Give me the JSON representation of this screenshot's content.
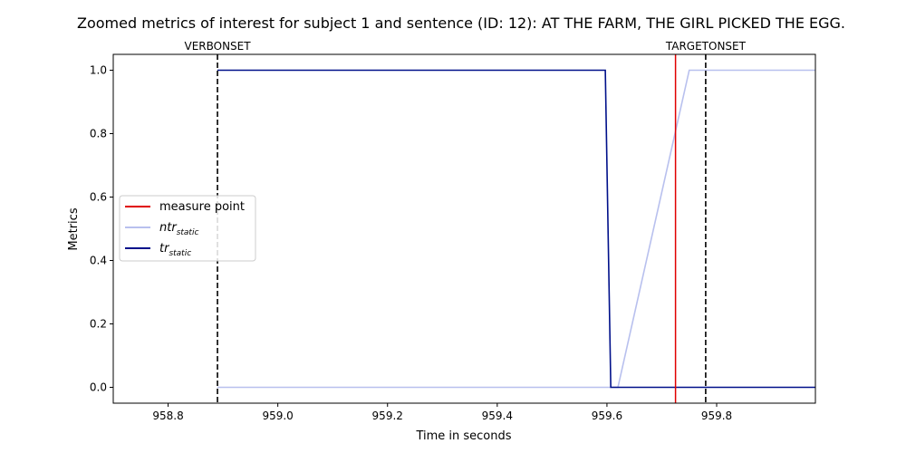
{
  "chart_data": {
    "type": "line",
    "title": "Zoomed metrics of interest for subject 1 and sentence (ID: 12): AT THE FARM, THE GIRL PICKED THE EGG.",
    "xlabel": "Time in seconds",
    "ylabel": "Metrics",
    "xlim": [
      958.7,
      959.98
    ],
    "ylim": [
      -0.05,
      1.05
    ],
    "x_ticks": [
      958.8,
      959.0,
      959.2,
      959.4,
      959.6,
      959.8
    ],
    "x_tick_labels": [
      "958.8",
      "959.0",
      "959.2",
      "959.4",
      "959.6",
      "959.8"
    ],
    "y_ticks": [
      0.0,
      0.2,
      0.4,
      0.6,
      0.8,
      1.0
    ],
    "y_tick_labels": [
      "0.0",
      "0.2",
      "0.4",
      "0.6",
      "0.8",
      "1.0"
    ],
    "grid": false,
    "legend_position": "center-left",
    "series": [
      {
        "key": "ntr",
        "name_main": "ntr",
        "name_sub": "static",
        "color": "#b8c0ee",
        "points": [
          [
            958.89,
            0.0
          ],
          [
            959.62,
            0.0
          ],
          [
            959.75,
            1.0
          ],
          [
            959.98,
            1.0
          ]
        ]
      },
      {
        "key": "tr",
        "name_main": "tr",
        "name_sub": "static",
        "color": "#00108a",
        "points": [
          [
            958.89,
            1.0
          ],
          [
            959.597,
            1.0
          ],
          [
            959.607,
            0.0
          ],
          [
            959.98,
            0.0
          ]
        ]
      }
    ],
    "vlines": [
      {
        "key": "measure",
        "x": 959.725,
        "color": "#e00000",
        "style": "solid",
        "label": "measure point"
      },
      {
        "key": "verb",
        "x": 958.89,
        "color": "#000000",
        "style": "dashed",
        "label": "VERBONSET"
      },
      {
        "key": "target",
        "x": 959.78,
        "color": "#000000",
        "style": "dashed",
        "label": "TARGETONSET"
      }
    ]
  }
}
